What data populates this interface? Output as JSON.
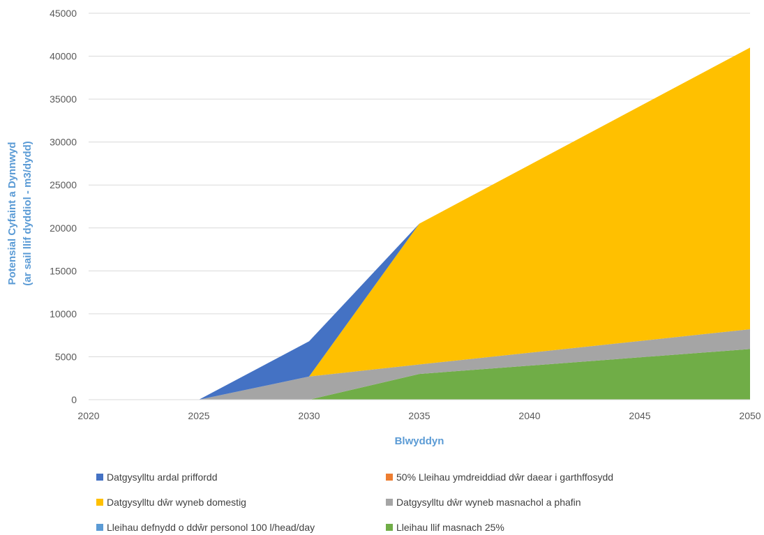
{
  "chart_data": {
    "type": "area",
    "stacked": true,
    "xlabel": "Blwyddyn",
    "ylabel_lines": [
      "Potensial Cyfaint a Dynnwyd",
      "(ar sail llif dyddiol - m3/dydd)"
    ],
    "ylim": [
      0,
      45000
    ],
    "y_ticks": [
      0,
      5000,
      10000,
      15000,
      20000,
      25000,
      30000,
      35000,
      40000,
      45000
    ],
    "xlim": [
      2020,
      2050
    ],
    "x_ticks": [
      2020,
      2025,
      2030,
      2035,
      2040,
      2045,
      2050
    ],
    "grid": "horizontal",
    "legend_position": "bottom",
    "x": [
      2025,
      2030,
      2035,
      2050
    ],
    "series": [
      {
        "name": "Lleihau llif masnach 25%",
        "color": "#70AD47",
        "values": [
          0,
          0,
          3000,
          5900
        ]
      },
      {
        "name": "Datgysylltu dŵr wyneb masnachol a phafin",
        "color": "#A5A5A5",
        "values": [
          0,
          2700,
          1100,
          2300
        ]
      },
      {
        "name": "Datgysylltu dŵr wyneb domestig",
        "color": "#FFC000",
        "values": [
          0,
          0,
          16400,
          32800
        ]
      },
      {
        "name": "Datgysylltu ardal priffordd",
        "color": "#4472C4",
        "values": [
          0,
          4100,
          0,
          0
        ]
      },
      {
        "name": "50% Lleihau ymdreiddiad dŵr daear i garthffosydd",
        "color": "#ED7D31",
        "values": [
          0,
          0,
          0,
          0
        ]
      },
      {
        "name": "Lleihau defnydd o ddŵr personol 100 l/head/day",
        "color": "#5B9BD5",
        "values": [
          0,
          0,
          0,
          0
        ]
      }
    ],
    "legend": [
      {
        "label": "Datgysylltu ardal priffordd",
        "color": "#4472C4"
      },
      {
        "label": "50% Lleihau ymdreiddiad dŵr daear i garthffosydd",
        "color": "#ED7D31"
      },
      {
        "label": "Datgysylltu dŵr wyneb domestig",
        "color": "#FFC000"
      },
      {
        "label": "Datgysylltu dŵr wyneb masnachol a phafin",
        "color": "#A5A5A5"
      },
      {
        "label": "Lleihau defnydd o ddŵr personol 100 l/head/day",
        "color": "#5B9BD5"
      },
      {
        "label": "Lleihau llif masnach 25%",
        "color": "#70AD47"
      }
    ]
  }
}
